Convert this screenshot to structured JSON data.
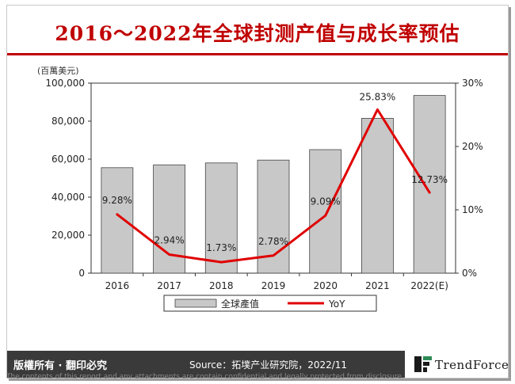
{
  "title": "2016～2022年全球封测产值与成长率预估",
  "unit_label": "(百萬美元)",
  "footer": {
    "rights": "版權所有 · 翻印必究",
    "source": "Source：拓墣产业研究院，2022/11",
    "logo": "TrendForce",
    "disclaimer": "The contents of this report and any attachments are contain confidential and legally protected from disclosure."
  },
  "colors": {
    "title": "#c00000",
    "bar": "#c8c8c8",
    "line": "#e00000",
    "footer_bg": "#3a3a3a"
  },
  "chart_data": {
    "type": "bar",
    "categories": [
      "2016",
      "2017",
      "2018",
      "2019",
      "2020",
      "2021",
      "2022(E)"
    ],
    "series": [
      {
        "name": "全球產值",
        "type": "bar",
        "axis": "left",
        "values": [
          55500,
          57000,
          58000,
          59500,
          65000,
          81500,
          93500
        ]
      },
      {
        "name": "YoY",
        "type": "line",
        "axis": "right",
        "values": [
          9.28,
          2.94,
          1.73,
          2.78,
          9.09,
          25.83,
          12.73
        ],
        "labels": [
          "9.28%",
          "2.94%",
          "1.73%",
          "2.78%",
          "9.09%",
          "25.83%",
          "12.73%"
        ]
      }
    ],
    "y_left": {
      "ylim": [
        0,
        100000
      ],
      "ticks": [
        "0",
        "20,000",
        "40,000",
        "60,000",
        "80,000",
        "100,000"
      ]
    },
    "y_right": {
      "ylim": [
        0,
        30
      ],
      "ticks": [
        "0%",
        "10%",
        "20%",
        "30%"
      ]
    },
    "legend": {
      "placement": "bottom",
      "items": [
        "全球產值",
        "YoY"
      ]
    },
    "grid": false
  }
}
